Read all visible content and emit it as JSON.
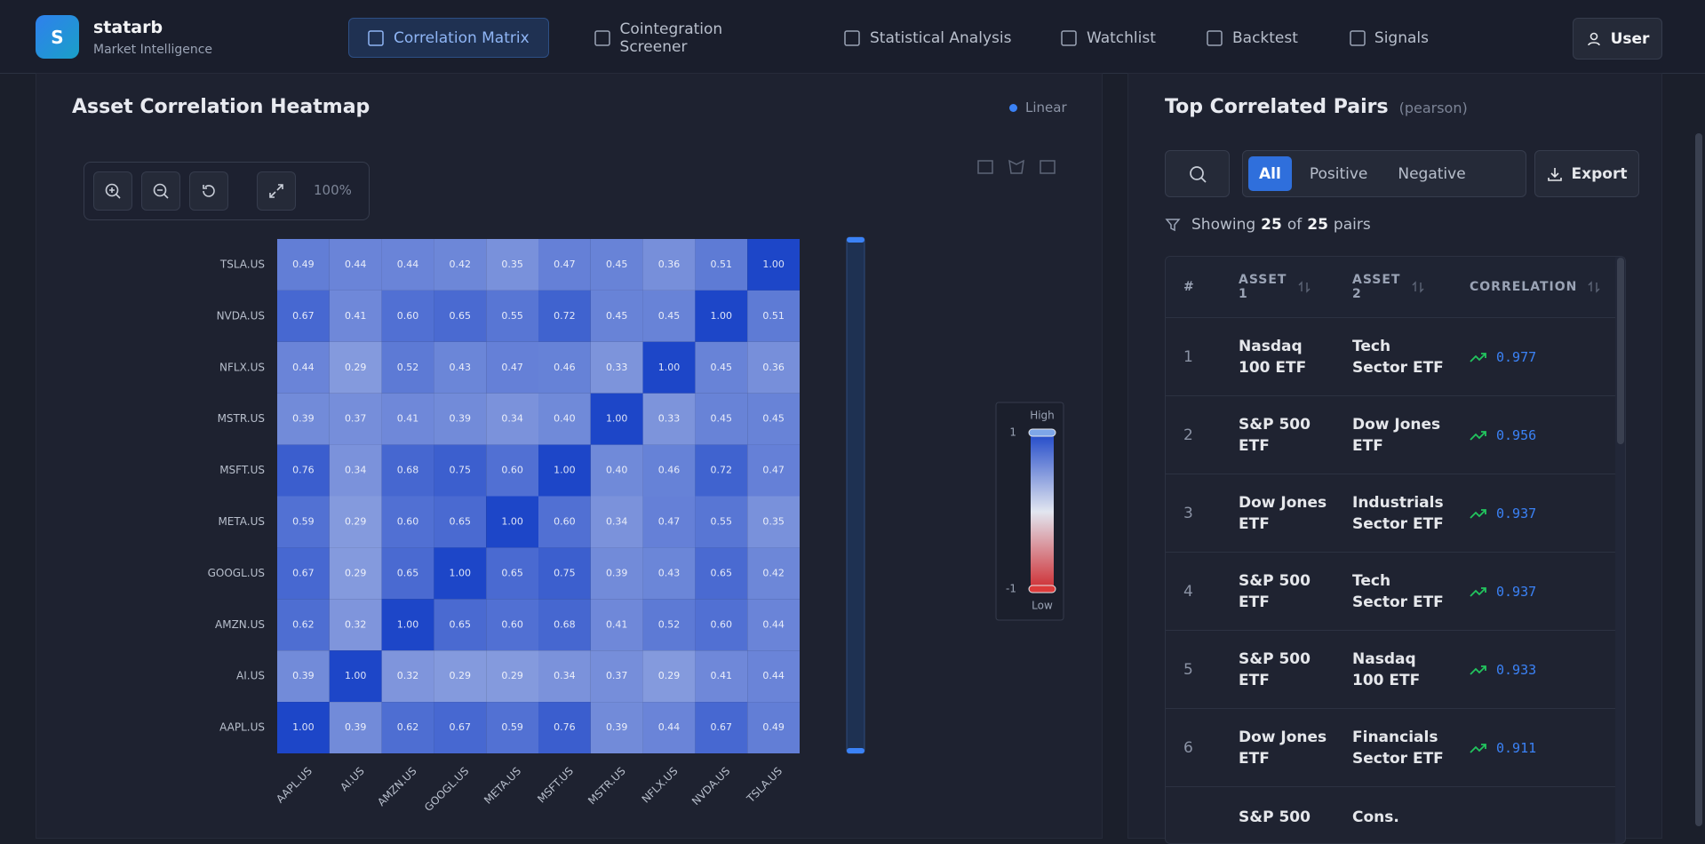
{
  "brand": {
    "logo": "S",
    "name": "statarb",
    "tagline": "Market Intelligence"
  },
  "nav": {
    "items": [
      "Correlation Matrix",
      "Cointegration Screener",
      "Statistical Analysis",
      "Watchlist",
      "Backtest",
      "Signals"
    ],
    "active": 0,
    "user": "User"
  },
  "heatmap": {
    "title": "Asset Correlation Heatmap",
    "mode": "Linear",
    "zoom": "100%",
    "rows": [
      "TSLA.US",
      "NVDA.US",
      "NFLX.US",
      "MSTR.US",
      "MSFT.US",
      "META.US",
      "GOOGL.US",
      "AMZN.US",
      "AI.US",
      "AAPL.US"
    ],
    "columns": [
      "AAPL.US",
      "AI.US",
      "AMZN.US",
      "GOOGL.US",
      "META.US",
      "MSFT.US",
      "MSTR.US",
      "NFLX.US",
      "NVDA.US",
      "TSLA.US"
    ],
    "values": [
      [
        "0.49",
        "0.44",
        "0.44",
        "0.42",
        "0.35",
        "0.47",
        "0.45",
        "0.36",
        "0.51",
        "1.00"
      ],
      [
        "0.67",
        "0.41",
        "0.60",
        "0.65",
        "0.55",
        "0.72",
        "0.45",
        "0.45",
        "1.00",
        "0.51"
      ],
      [
        "0.44",
        "0.29",
        "0.52",
        "0.43",
        "0.47",
        "0.46",
        "0.33",
        "1.00",
        "0.45",
        "0.36"
      ],
      [
        "0.39",
        "0.37",
        "0.41",
        "0.39",
        "0.34",
        "0.40",
        "1.00",
        "0.33",
        "0.45",
        "0.45"
      ],
      [
        "0.76",
        "0.34",
        "0.68",
        "0.75",
        "0.60",
        "1.00",
        "0.40",
        "0.46",
        "0.72",
        "0.47"
      ],
      [
        "0.59",
        "0.29",
        "0.60",
        "0.65",
        "1.00",
        "0.60",
        "0.34",
        "0.47",
        "0.55",
        "0.35"
      ],
      [
        "0.67",
        "0.29",
        "0.65",
        "1.00",
        "0.65",
        "0.75",
        "0.39",
        "0.43",
        "0.65",
        "0.42"
      ],
      [
        "0.62",
        "0.32",
        "1.00",
        "0.65",
        "0.60",
        "0.68",
        "0.41",
        "0.52",
        "0.60",
        "0.44"
      ],
      [
        "0.39",
        "1.00",
        "0.32",
        "0.29",
        "0.29",
        "0.34",
        "0.37",
        "0.29",
        "0.41",
        "0.44"
      ],
      [
        "1.00",
        "0.39",
        "0.62",
        "0.67",
        "0.59",
        "0.76",
        "0.39",
        "0.44",
        "0.67",
        "0.49"
      ]
    ],
    "legend": {
      "high": "High",
      "low": "Low",
      "max": "1",
      "min": "-1"
    }
  },
  "pairs": {
    "title": "Top Correlated Pairs",
    "method": "(pearson)",
    "filters": [
      "All",
      "Positive",
      "Negative"
    ],
    "export": "Export",
    "showing": {
      "prefix": "Showing",
      "shown": "25",
      "of": "of",
      "total": "25",
      "suffix": "pairs"
    },
    "headers": [
      "#",
      "ASSET 1",
      "ASSET 2",
      "CORRELATION"
    ],
    "rows": [
      {
        "rank": "1",
        "asset1": "Nasdaq 100 ETF",
        "asset2": "Tech Sector ETF",
        "correlation": "0.977"
      },
      {
        "rank": "2",
        "asset1": "S&P 500 ETF",
        "asset2": "Dow Jones ETF",
        "correlation": "0.956"
      },
      {
        "rank": "3",
        "asset1": "Dow Jones ETF",
        "asset2": "Industrials Sector ETF",
        "correlation": "0.937"
      },
      {
        "rank": "4",
        "asset1": "S&P 500 ETF",
        "asset2": "Tech Sector ETF",
        "correlation": "0.937"
      },
      {
        "rank": "5",
        "asset1": "S&P 500 ETF",
        "asset2": "Nasdaq 100 ETF",
        "correlation": "0.933"
      },
      {
        "rank": "6",
        "asset1": "Dow Jones ETF",
        "asset2": "Financials Sector ETF",
        "correlation": "0.911"
      },
      {
        "asset1": "S&P 500",
        "asset2": "Cons."
      }
    ]
  }
}
